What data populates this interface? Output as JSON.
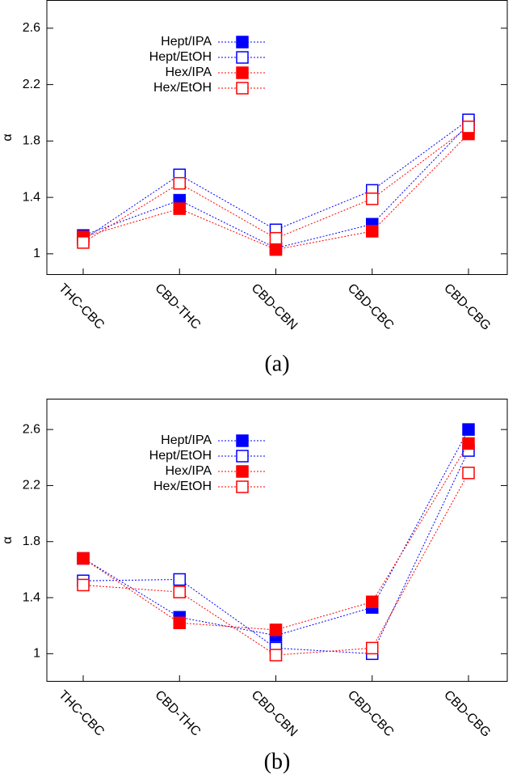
{
  "chart_data": [
    {
      "type": "line",
      "caption": "(a)",
      "ylabel": "α",
      "categories": [
        "THC-CBC",
        "CBD-THC",
        "CBD-CBN",
        "CBD-CBC",
        "CBD-CBG"
      ],
      "ylim": [
        0.85,
        2.8
      ],
      "yticks": [
        1,
        1.4,
        1.8,
        2.2,
        2.6
      ],
      "series": [
        {
          "name": "Hept/IPA",
          "color": "#0000ff",
          "marker": "filled",
          "values": [
            1.13,
            1.38,
            1.04,
            1.21,
            1.92
          ]
        },
        {
          "name": "Hept/EtOH",
          "color": "#0000ff",
          "marker": "open",
          "values": [
            1.1,
            1.56,
            1.17,
            1.45,
            1.95
          ]
        },
        {
          "name": "Hex/IPA",
          "color": "#ff0000",
          "marker": "filled",
          "values": [
            1.12,
            1.32,
            1.03,
            1.16,
            1.85
          ]
        },
        {
          "name": "Hex/EtOH",
          "color": "#ff0000",
          "marker": "open",
          "values": [
            1.08,
            1.5,
            1.11,
            1.39,
            1.9
          ]
        }
      ]
    },
    {
      "type": "line",
      "caption": "(b)",
      "ylabel": "α",
      "categories": [
        "THC-CBC",
        "CBD-THC",
        "CBD-CBN",
        "CBD-CBC",
        "CBD-CBG"
      ],
      "ylim": [
        0.8,
        2.82
      ],
      "yticks": [
        1,
        1.4,
        1.8,
        2.2,
        2.6
      ],
      "series": [
        {
          "name": "Hept/IPA",
          "color": "#0000ff",
          "marker": "filled",
          "values": [
            1.68,
            1.26,
            1.13,
            1.33,
            2.6
          ]
        },
        {
          "name": "Hept/EtOH",
          "color": "#0000ff",
          "marker": "open",
          "values": [
            1.52,
            1.53,
            1.04,
            1.0,
            2.45
          ]
        },
        {
          "name": "Hex/IPA",
          "color": "#ff0000",
          "marker": "filled",
          "values": [
            1.68,
            1.22,
            1.17,
            1.37,
            2.5
          ]
        },
        {
          "name": "Hex/EtOH",
          "color": "#ff0000",
          "marker": "open",
          "values": [
            1.49,
            1.44,
            0.99,
            1.04,
            2.29
          ]
        }
      ]
    }
  ]
}
